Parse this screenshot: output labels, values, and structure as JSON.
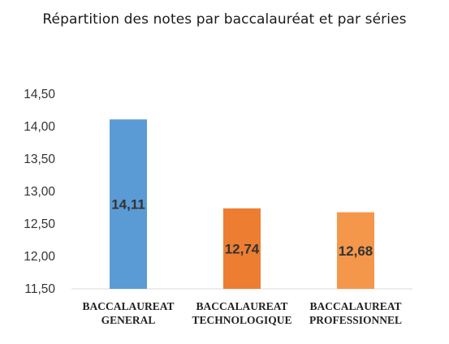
{
  "chart_data": {
    "type": "bar",
    "title": "Répartition des notes par baccalauréat et par séries",
    "categories": [
      [
        "BACCALAUREAT",
        "GENERAL"
      ],
      [
        "BACCALAUREAT",
        "TECHNOLOGIQUE"
      ],
      [
        "BACCALAUREAT",
        "PROFESSIONNEL"
      ]
    ],
    "values": [
      14.11,
      12.74,
      12.68
    ],
    "data_labels": [
      "14,11",
      "12,74",
      "12,68"
    ],
    "bar_colors": [
      "#5b9bd5",
      "#ed7d31",
      "#f4974a"
    ],
    "ylim": [
      11.5,
      14.5
    ],
    "yticks": [
      11.5,
      12.0,
      12.5,
      13.0,
      13.5,
      14.0,
      14.5
    ],
    "ytick_labels": [
      "11,50",
      "12,00",
      "12,50",
      "13,00",
      "13,50",
      "14,00",
      "14,50"
    ],
    "xlabel": "",
    "ylabel": "",
    "grid": false,
    "legend": "none"
  }
}
